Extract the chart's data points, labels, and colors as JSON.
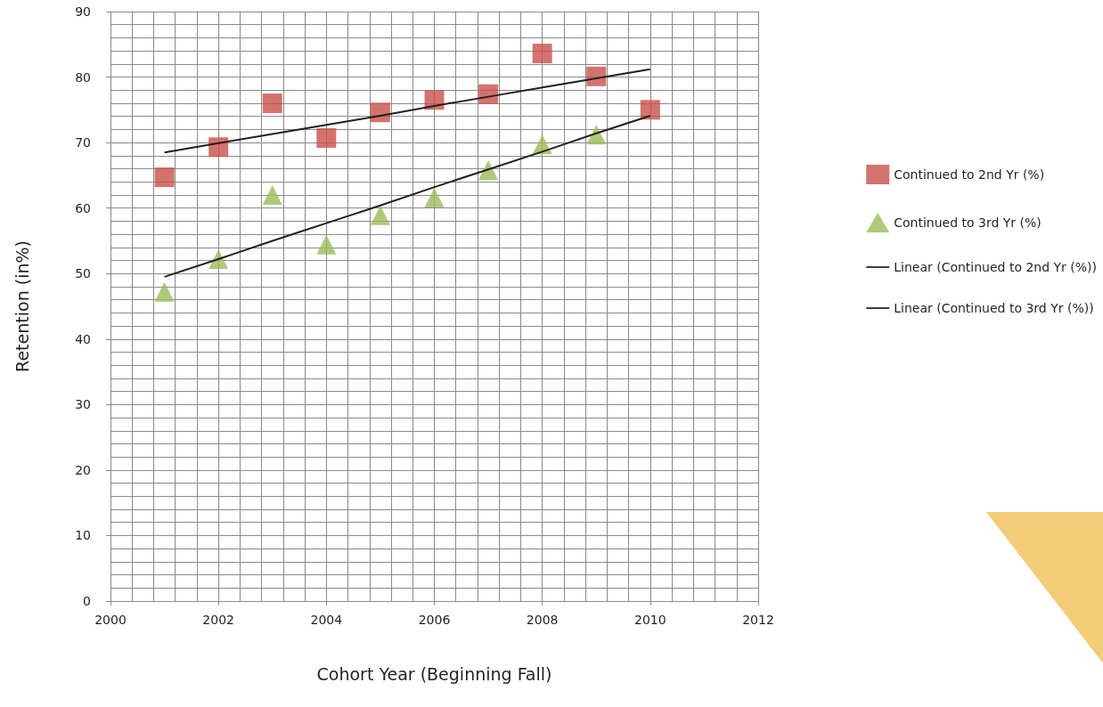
{
  "chart_data": {
    "type": "scatter",
    "xlabel": "Cohort Year (Beginning Fall)",
    "ylabel": "Retention (in%)",
    "x": [
      2001,
      2002,
      2003,
      2004,
      2005,
      2006,
      2007,
      2008,
      2009,
      2010
    ],
    "series": [
      {
        "name": "Continued to 2nd Yr (%)",
        "color": "#c9504a",
        "marker": "square",
        "values": [
          64.7,
          69.3,
          76.0,
          70.7,
          74.6,
          76.5,
          77.4,
          83.6,
          80.1,
          75.0
        ]
      },
      {
        "name": "Continued to 3rd Yr (%)",
        "color": "#9bbb59",
        "marker": "triangle",
        "values": [
          47.2,
          52.2,
          62.0,
          54.4,
          58.9,
          61.6,
          65.8,
          69.7,
          71.2,
          null
        ]
      },
      {
        "name": "Linear (Continued to 2nd Yr (%))",
        "type": "line",
        "color": "#231f20",
        "marker": "none",
        "values": [
          68.5,
          69.9,
          71.3,
          72.7,
          74.1,
          75.6,
          77.0,
          78.4,
          79.8,
          81.2
        ]
      },
      {
        "name": "Linear (Continued to 3rd Yr (%))",
        "type": "line",
        "color": "#231f20",
        "marker": "none",
        "values": [
          49.5,
          52.2,
          55.0,
          57.7,
          60.4,
          63.2,
          65.9,
          68.6,
          71.4,
          74.1
        ]
      }
    ],
    "xlim": [
      2000,
      2012
    ],
    "xticks": [
      2000,
      2002,
      2004,
      2006,
      2008,
      2010,
      2012
    ],
    "ylim": [
      0,
      90
    ],
    "yticks": [
      0,
      10,
      20,
      30,
      40,
      50,
      60,
      70,
      80,
      90
    ],
    "grid": true,
    "legend": "right"
  }
}
